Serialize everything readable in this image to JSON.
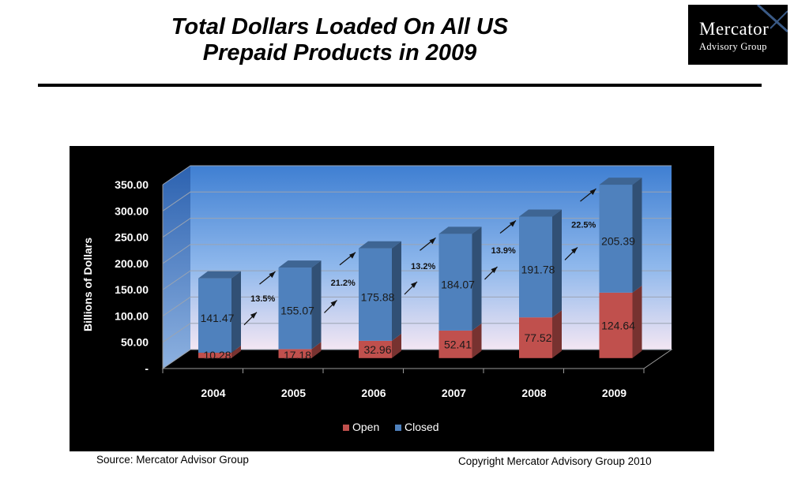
{
  "header": {
    "title_line1": "Total Dollars Loaded On All US",
    "title_line2": "Prepaid Products in 2009"
  },
  "logo": {
    "line1": "Mercator",
    "line2": "Advisory Group"
  },
  "chart_data": {
    "type": "bar",
    "stacked": true,
    "categories": [
      "2004",
      "2005",
      "2006",
      "2007",
      "2008",
      "2009"
    ],
    "series": [
      {
        "name": "Open",
        "color": "#c0504d",
        "values": [
          10.28,
          17.18,
          32.96,
          52.41,
          77.52,
          124.64
        ]
      },
      {
        "name": "Closed",
        "color": "#4f81bd",
        "values": [
          141.47,
          155.07,
          175.88,
          184.07,
          191.78,
          205.39
        ]
      }
    ],
    "ylabel": "Billions of Dollars",
    "ylim": [
      0,
      350
    ],
    "yticks": [
      "-",
      "50.00",
      "100.00",
      "150.00",
      "200.00",
      "250.00",
      "300.00",
      "350.00"
    ],
    "growth_annotations": [
      "13.5%",
      "21.2%",
      "13.2%",
      "13.9%",
      "22.5%"
    ],
    "legend_position": "bottom",
    "grid": true
  },
  "footer": {
    "source": "Source: Mercator Advisor Group",
    "copyright": "Copyright Mercator Advisory Group 2010"
  }
}
